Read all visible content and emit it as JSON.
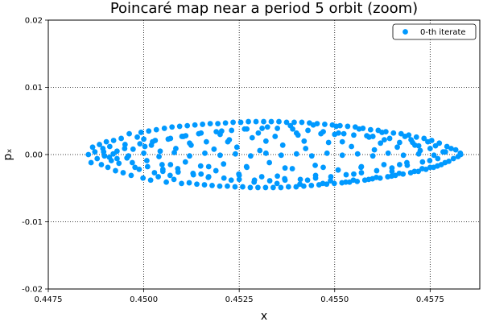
{
  "chart_data": {
    "type": "scatter",
    "title": "Poincaré map near a period 5 orbit (zoom)",
    "xlabel": "x",
    "ylabel": "pₓ",
    "xlim": [
      0.4475,
      0.4588
    ],
    "ylim": [
      -0.02,
      0.02
    ],
    "x_ticks": [
      0.4475,
      0.45,
      0.4525,
      0.455,
      0.4575
    ],
    "x_tick_labels": [
      "0.4475",
      "0.4500",
      "0.4525",
      "0.4550",
      "0.4575"
    ],
    "y_ticks": [
      -0.02,
      -0.01,
      0.0,
      0.01,
      0.02
    ],
    "y_tick_labels": [
      "-0.02",
      "-0.01",
      "0.00",
      "0.01",
      "0.02"
    ],
    "grid": true,
    "legend_position": "top-right",
    "series": [
      {
        "name": "0-th iterate",
        "color": "#0099ff",
        "points": [
          [
            0.44855,
            0.0
          ],
          [
            0.44862,
            -0.0012
          ],
          [
            0.44866,
            0.0011
          ],
          [
            0.44872,
            0.0004
          ],
          [
            0.44878,
            -0.0006
          ],
          [
            0.44884,
            0.0015
          ],
          [
            0.44889,
            -0.0015
          ],
          [
            0.44893,
            0.0009
          ],
          [
            0.44897,
            -0.0002
          ],
          [
            0.44902,
            0.0019
          ],
          [
            0.44906,
            -0.0019
          ],
          [
            0.44911,
            0.0012
          ],
          [
            0.44915,
            -0.0009
          ],
          [
            0.44921,
            0.0021
          ],
          [
            0.44926,
            -0.0024
          ],
          [
            0.4493,
            0.0005
          ],
          [
            0.44935,
            -0.0013
          ],
          [
            0.44941,
            0.0024
          ],
          [
            0.44946,
            -0.0027
          ],
          [
            0.44951,
            0.0015
          ],
          [
            0.44956,
            -0.0005
          ],
          [
            0.44962,
            0.0031
          ],
          [
            0.44967,
            -0.0031
          ],
          [
            0.44972,
            0.0008
          ],
          [
            0.44977,
            -0.0019
          ],
          [
            0.44983,
            0.0026
          ],
          [
            0.44988,
            -0.0022
          ],
          [
            0.44993,
            0.0033
          ],
          [
            0.44998,
            -0.0035
          ],
          [
            0.45003,
            0.0012
          ],
          [
            0.45008,
            -0.0009
          ],
          [
            0.45013,
            0.0035
          ],
          [
            0.45018,
            -0.0038
          ],
          [
            0.45023,
            0.0019
          ],
          [
            0.45028,
            -0.0027
          ],
          [
            0.45033,
            0.0037
          ],
          [
            0.45038,
            -0.0033
          ],
          [
            0.45043,
            0.0005
          ],
          [
            0.45048,
            -0.0015
          ],
          [
            0.45054,
            0.0039
          ],
          [
            0.45059,
            -0.0041
          ],
          [
            0.45064,
            0.0023
          ],
          [
            0.45069,
            -0.0031
          ],
          [
            0.45074,
            0.0041
          ],
          [
            0.45079,
            -0.0037
          ],
          [
            0.45084,
            0.0009
          ],
          [
            0.45089,
            -0.0021
          ],
          [
            0.45094,
            0.0042
          ],
          [
            0.45099,
            -0.0043
          ],
          [
            0.45104,
            0.0027
          ],
          [
            0.45109,
            -0.0011
          ],
          [
            0.45114,
            0.0043
          ],
          [
            0.45119,
            -0.0042
          ],
          [
            0.45124,
            0.0014
          ],
          [
            0.45129,
            -0.0028
          ],
          [
            0.45134,
            0.0044
          ],
          [
            0.45139,
            -0.0044
          ],
          [
            0.45144,
            0.0031
          ],
          [
            0.45149,
            -0.0017
          ],
          [
            0.45154,
            0.0045
          ],
          [
            0.45159,
            -0.0045
          ],
          [
            0.45164,
            0.0019
          ],
          [
            0.45169,
            -0.0034
          ],
          [
            0.45174,
            0.0046
          ],
          [
            0.45179,
            -0.0046
          ],
          [
            0.45184,
            0.0008
          ],
          [
            0.45189,
            -0.0024
          ],
          [
            0.45194,
            0.0046
          ],
          [
            0.45199,
            -0.0047
          ],
          [
            0.45204,
            0.0035
          ],
          [
            0.45209,
            -0.0014
          ],
          [
            0.45214,
            0.0047
          ],
          [
            0.45219,
            -0.0047
          ],
          [
            0.45224,
            0.0022
          ],
          [
            0.45229,
            -0.0038
          ],
          [
            0.45234,
            0.0048
          ],
          [
            0.45239,
            -0.0048
          ],
          [
            0.45244,
            0.0011
          ],
          [
            0.45249,
            -0.0029
          ],
          [
            0.45254,
            0.0048
          ],
          [
            0.45259,
            -0.0048
          ],
          [
            0.45264,
            0.0038
          ],
          [
            0.45269,
            -0.0018
          ],
          [
            0.45274,
            0.0049
          ],
          [
            0.45279,
            -0.0049
          ],
          [
            0.45284,
            0.0025
          ],
          [
            0.45289,
            -0.0041
          ],
          [
            0.45294,
            0.0049
          ],
          [
            0.45299,
            -0.0049
          ],
          [
            0.45304,
            0.0006
          ],
          [
            0.45309,
            -0.0033
          ],
          [
            0.45314,
            0.0049
          ],
          [
            0.45319,
            -0.0049
          ],
          [
            0.45324,
            0.0041
          ],
          [
            0.45329,
            -0.0012
          ],
          [
            0.45334,
            0.0049
          ],
          [
            0.45339,
            -0.0049
          ],
          [
            0.45344,
            0.0027
          ],
          [
            0.45349,
            -0.0043
          ],
          [
            0.45354,
            0.0049
          ],
          [
            0.45359,
            -0.0049
          ],
          [
            0.45364,
            0.0014
          ],
          [
            0.45369,
            -0.0036
          ],
          [
            0.45374,
            0.0048
          ],
          [
            0.45379,
            -0.0048
          ],
          [
            0.45384,
            0.0043
          ],
          [
            0.45389,
            -0.0021
          ],
          [
            0.45394,
            0.0048
          ],
          [
            0.45399,
            -0.0048
          ],
          [
            0.45404,
            0.0029
          ],
          [
            0.45409,
            -0.0044
          ],
          [
            0.45414,
            0.0048
          ],
          [
            0.45419,
            -0.0047
          ],
          [
            0.45424,
            0.0009
          ],
          [
            0.45429,
            -0.0038
          ],
          [
            0.45434,
            0.0047
          ],
          [
            0.45439,
            -0.0046
          ],
          [
            0.45444,
            0.0044
          ],
          [
            0.45449,
            -0.0016
          ],
          [
            0.45454,
            0.0046
          ],
          [
            0.45459,
            -0.0045
          ],
          [
            0.45464,
            0.0031
          ],
          [
            0.45469,
            -0.0043
          ],
          [
            0.45474,
            0.0045
          ],
          [
            0.45479,
            -0.0044
          ],
          [
            0.45484,
            0.0018
          ],
          [
            0.45489,
            -0.0039
          ],
          [
            0.45494,
            0.0044
          ],
          [
            0.45499,
            -0.0043
          ],
          [
            0.45504,
            0.0042
          ],
          [
            0.45509,
            -0.0023
          ],
          [
            0.45514,
            0.0043
          ],
          [
            0.45519,
            -0.0042
          ],
          [
            0.45524,
            0.0031
          ],
          [
            0.45529,
            -0.0041
          ],
          [
            0.45534,
            0.0042
          ],
          [
            0.45539,
            -0.0041
          ],
          [
            0.45544,
            0.0012
          ],
          [
            0.45549,
            -0.0038
          ],
          [
            0.45554,
            0.0041
          ],
          [
            0.45559,
            -0.004
          ],
          [
            0.45564,
            0.0038
          ],
          [
            0.45569,
            -0.0019
          ],
          [
            0.45574,
            0.0039
          ],
          [
            0.45579,
            -0.0038
          ],
          [
            0.45584,
            0.0028
          ],
          [
            0.45589,
            -0.0037
          ],
          [
            0.45594,
            0.0037
          ],
          [
            0.45599,
            -0.0036
          ],
          [
            0.45604,
            0.0007
          ],
          [
            0.45609,
            -0.0034
          ],
          [
            0.45614,
            0.0036
          ],
          [
            0.45619,
            -0.0035
          ],
          [
            0.45624,
            0.0033
          ],
          [
            0.45629,
            -0.0015
          ],
          [
            0.45634,
            0.0034
          ],
          [
            0.45639,
            -0.0033
          ],
          [
            0.45644,
            0.0024
          ],
          [
            0.45649,
            -0.0032
          ],
          [
            0.45654,
            0.0032
          ],
          [
            0.45659,
            -0.0031
          ],
          [
            0.45664,
            0.0011
          ],
          [
            0.45669,
            -0.0028
          ],
          [
            0.45674,
            0.0031
          ],
          [
            0.45679,
            -0.0029
          ],
          [
            0.45684,
            0.0027
          ],
          [
            0.45689,
            -0.0012
          ],
          [
            0.45694,
            0.0029
          ],
          [
            0.45699,
            -0.0027
          ],
          [
            0.45704,
            0.0018
          ],
          [
            0.45709,
            -0.0025
          ],
          [
            0.45714,
            0.0026
          ],
          [
            0.45719,
            -0.0025
          ],
          [
            0.45724,
            0.0006
          ],
          [
            0.45729,
            -0.0021
          ],
          [
            0.45734,
            0.0024
          ],
          [
            0.45739,
            -0.0022
          ],
          [
            0.45744,
            0.0019
          ],
          [
            0.45749,
            -0.0009
          ],
          [
            0.45754,
            0.0021
          ],
          [
            0.45759,
            -0.0019
          ],
          [
            0.45764,
            0.0013
          ],
          [
            0.45769,
            -0.0017
          ],
          [
            0.45774,
            0.0017
          ],
          [
            0.45779,
            -0.0015
          ],
          [
            0.45784,
            0.0004
          ],
          [
            0.45789,
            -0.0012
          ],
          [
            0.45794,
            0.0012
          ],
          [
            0.45799,
            -0.001
          ],
          [
            0.45805,
            0.0009
          ],
          [
            0.45811,
            -0.0006
          ],
          [
            0.45817,
            0.0007
          ],
          [
            0.45823,
            -0.0003
          ],
          [
            0.45829,
            0.0002
          ],
          [
            0.4583,
            0.0
          ],
          [
            0.44895,
            0.0004
          ],
          [
            0.4491,
            -0.0004
          ],
          [
            0.4493,
            -0.0006
          ],
          [
            0.4495,
            0.0009
          ],
          [
            0.4497,
            -0.0012
          ],
          [
            0.4499,
            0.0016
          ],
          [
            0.4501,
            -0.0018
          ],
          [
            0.4503,
            0.0021
          ],
          [
            0.4505,
            -0.0022
          ],
          [
            0.4507,
            0.0024
          ],
          [
            0.4509,
            -0.0026
          ],
          [
            0.4511,
            0.0028
          ],
          [
            0.4513,
            -0.003
          ],
          [
            0.4515,
            0.0032
          ],
          [
            0.4517,
            -0.0033
          ],
          [
            0.4519,
            0.0034
          ],
          [
            0.4521,
            -0.0035
          ],
          [
            0.4523,
            0.0036
          ],
          [
            0.4525,
            -0.0037
          ],
          [
            0.4527,
            0.0038
          ],
          [
            0.4529,
            -0.0038
          ],
          [
            0.4531,
            0.0039
          ],
          [
            0.4533,
            -0.0039
          ],
          [
            0.4535,
            0.0039
          ],
          [
            0.4537,
            -0.0038
          ],
          [
            0.4539,
            0.0038
          ],
          [
            0.4541,
            -0.0037
          ],
          [
            0.4543,
            0.0036
          ],
          [
            0.4545,
            -0.0035
          ],
          [
            0.4547,
            0.0034
          ],
          [
            0.4549,
            -0.0033
          ],
          [
            0.4551,
            0.0032
          ],
          [
            0.4553,
            -0.003
          ],
          [
            0.4555,
            0.0029
          ],
          [
            0.4557,
            -0.0027
          ],
          [
            0.4559,
            0.0026
          ],
          [
            0.4561,
            -0.0024
          ],
          [
            0.4563,
            0.0022
          ],
          [
            0.4565,
            -0.002
          ],
          [
            0.4567,
            0.0018
          ],
          [
            0.4569,
            -0.0016
          ],
          [
            0.4571,
            0.0014
          ],
          [
            0.4573,
            -0.0011
          ],
          [
            0.4575,
            0.0009
          ],
          [
            0.4577,
            -0.0006
          ],
          [
            0.4579,
            0.0004
          ],
          [
            0.4492,
            0.0001
          ],
          [
            0.4496,
            -0.0002
          ],
          [
            0.45,
            0.0002
          ],
          [
            0.4504,
            -0.0003
          ],
          [
            0.4508,
            0.0003
          ],
          [
            0.4512,
            -0.0002
          ],
          [
            0.4516,
            0.0002
          ],
          [
            0.452,
            -0.0001
          ],
          [
            0.4524,
            0.0001
          ],
          [
            0.4528,
            -0.0002
          ],
          [
            0.4532,
            0.0002
          ],
          [
            0.4536,
            -0.0001
          ],
          [
            0.454,
            0.0001
          ],
          [
            0.4544,
            -0.0002
          ],
          [
            0.4548,
            0.0002
          ],
          [
            0.4552,
            -0.0001
          ],
          [
            0.4556,
            0.0001
          ],
          [
            0.456,
            -0.0002
          ],
          [
            0.4564,
            0.0002
          ],
          [
            0.4568,
            -0.0001
          ],
          [
            0.4572,
            0.0001
          ],
          [
            0.4576,
            -0.0001
          ],
          [
            0.45,
            0.0023
          ],
          [
            0.4505,
            -0.0025
          ],
          [
            0.451,
            0.0027
          ],
          [
            0.4515,
            -0.0029
          ],
          [
            0.452,
            0.003
          ],
          [
            0.4525,
            -0.0031
          ],
          [
            0.453,
            0.0032
          ],
          [
            0.4535,
            -0.0032
          ],
          [
            0.454,
            0.0032
          ],
          [
            0.4545,
            -0.0031
          ],
          [
            0.455,
            0.003
          ],
          [
            0.4555,
            -0.0029
          ],
          [
            0.456,
            0.0027
          ],
          [
            0.4565,
            -0.0025
          ],
          [
            0.457,
            0.0022
          ],
          [
            0.4575,
            -0.0019
          ],
          [
            0.4502,
            0.0014
          ],
          [
            0.4507,
            -0.0015
          ],
          [
            0.4512,
            0.0017
          ],
          [
            0.4517,
            -0.0018
          ],
          [
            0.4522,
            0.0019
          ],
          [
            0.4527,
            -0.0019
          ],
          [
            0.4532,
            0.002
          ],
          [
            0.4537,
            -0.002
          ],
          [
            0.4542,
            0.002
          ],
          [
            0.4547,
            -0.0019
          ],
          [
            0.4552,
            0.0019
          ],
          [
            0.4557,
            -0.0018
          ],
          [
            0.4562,
            0.0017
          ],
          [
            0.4567,
            -0.0015
          ],
          [
            0.4572,
            0.0013
          ]
        ]
      }
    ]
  }
}
